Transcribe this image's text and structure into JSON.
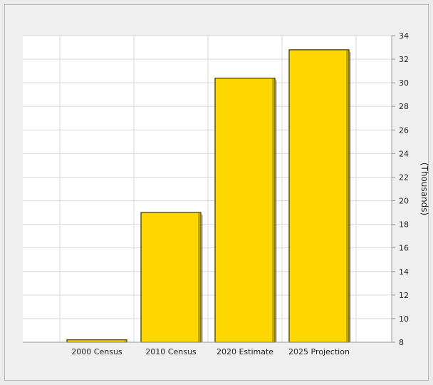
{
  "chart_data": {
    "type": "bar",
    "categories": [
      "2000 Census",
      "2010 Census",
      "2020 Estimate",
      "2025 Projection"
    ],
    "values": [
      8.2,
      19.0,
      30.4,
      32.8
    ],
    "ylabel": "(Thousands)",
    "ylim": [
      8,
      34
    ],
    "yticks": [
      8,
      10,
      12,
      14,
      16,
      18,
      20,
      22,
      24,
      26,
      28,
      30,
      32,
      34
    ],
    "y_axis_side": "right",
    "grid": true,
    "legend": "none",
    "colors": {
      "bar_fill": "#FFD700",
      "bar_top": "#FFE44D",
      "bar_edge": "#3A3000",
      "bar_shadow": "#9C8700",
      "grid": "#D9D9D9",
      "plot_bg": "#FFFFFF",
      "frame_bg": "#EFEFEF"
    }
  }
}
